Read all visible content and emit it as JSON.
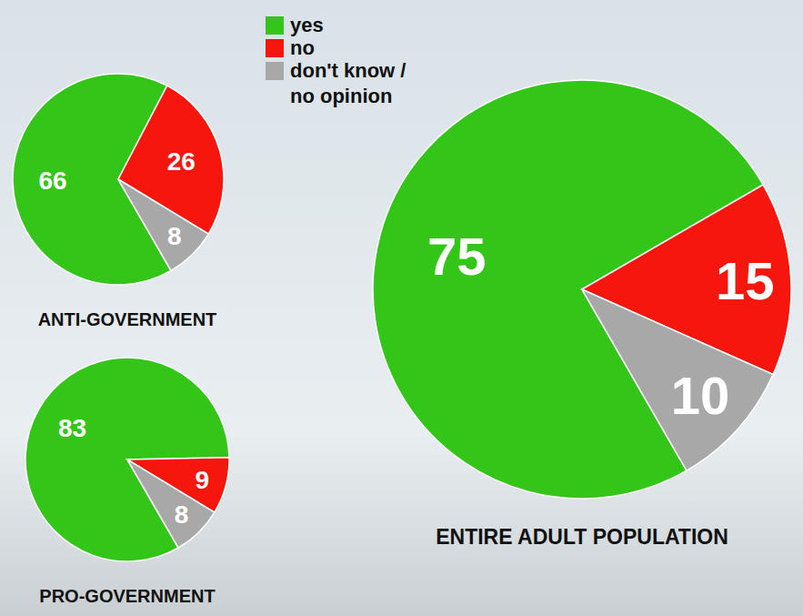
{
  "chart_data": [
    {
      "type": "pie",
      "title": "ANTI-GOVERNMENT",
      "categories": [
        "yes",
        "no",
        "don't know / no opinion"
      ],
      "values": [
        66,
        26,
        8
      ],
      "colors": [
        "#33c619",
        "#f5160e",
        "#a8a8a8"
      ],
      "data_labels": true,
      "legend": "top"
    },
    {
      "type": "pie",
      "title": "PRO-GOVERNMENT",
      "categories": [
        "yes",
        "no",
        "don't know / no opinion"
      ],
      "values": [
        83,
        9,
        8
      ],
      "colors": [
        "#33c619",
        "#f5160e",
        "#a8a8a8"
      ],
      "data_labels": true
    },
    {
      "type": "pie",
      "title": "ENTIRE ADULT POPULATION",
      "categories": [
        "yes",
        "no",
        "don't know / no opinion"
      ],
      "values": [
        75,
        15,
        10
      ],
      "colors": [
        "#33c619",
        "#f5160e",
        "#a8a8a8"
      ],
      "data_labels": true
    }
  ]
}
